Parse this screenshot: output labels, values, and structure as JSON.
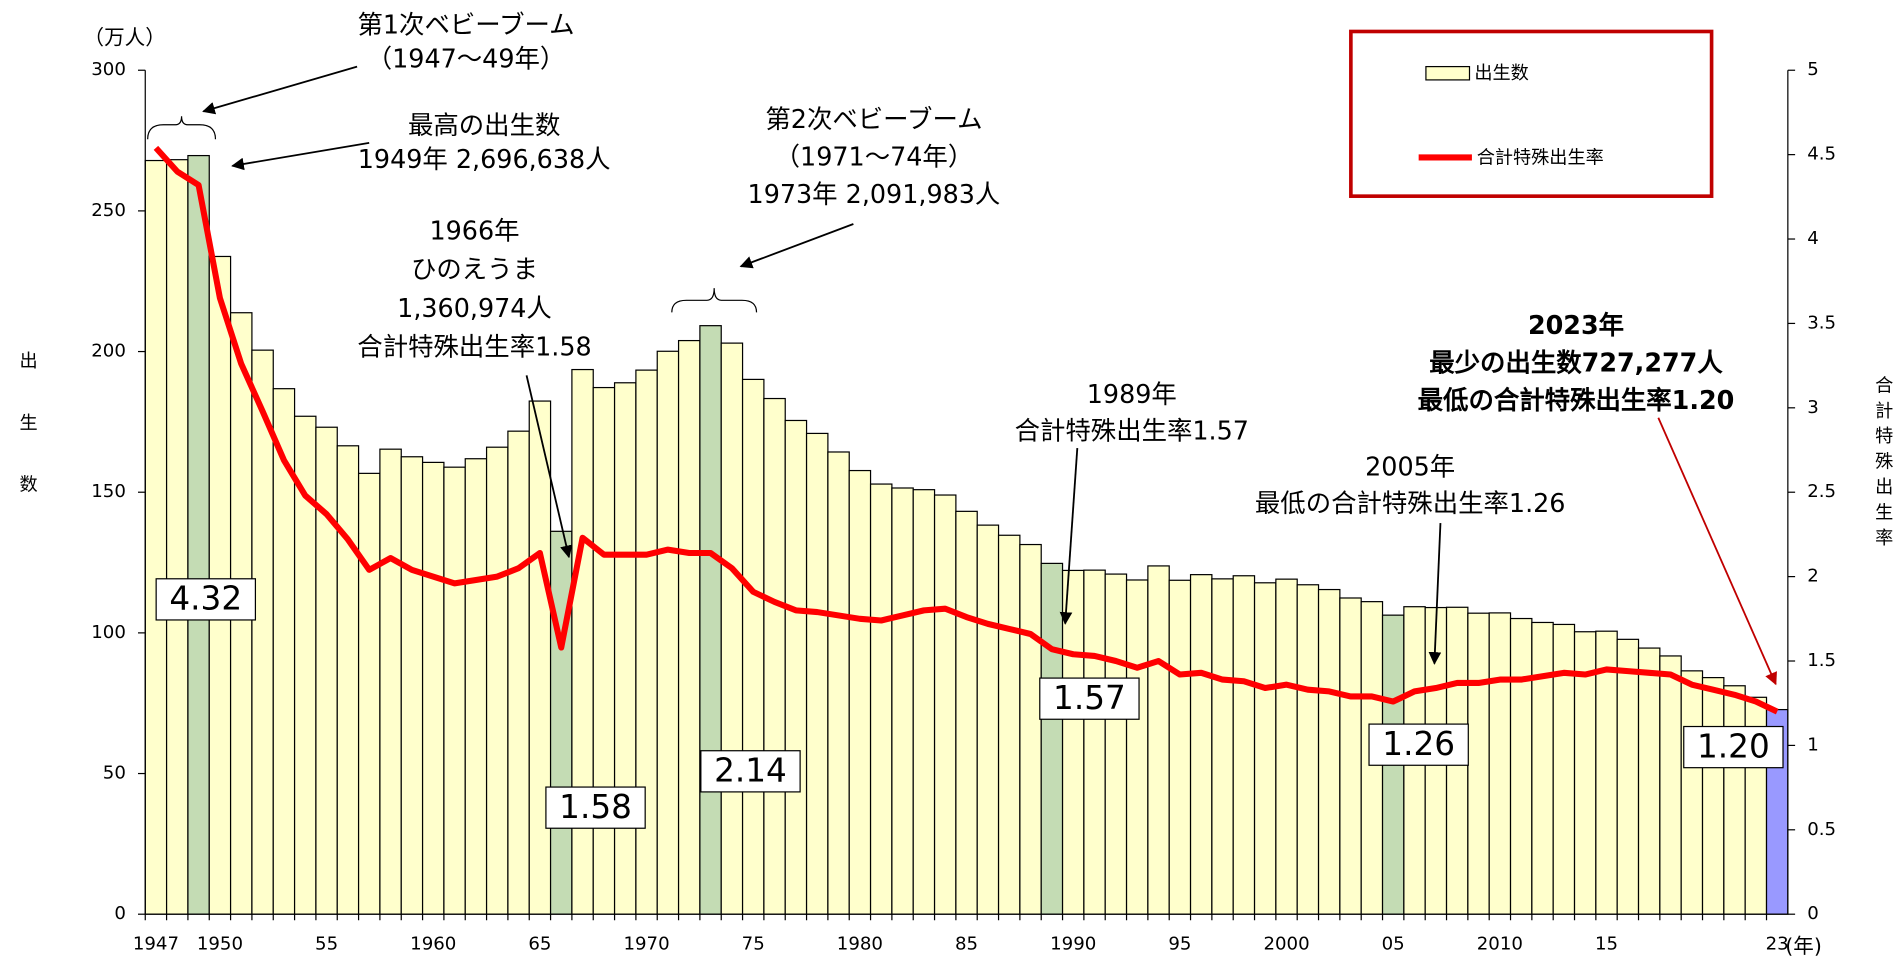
{
  "chart_data": {
    "type": "bar-line",
    "y_unit": "（万人）",
    "x_unit": "(年)",
    "y_label": "出生数",
    "y2_label": "合計特殊出生率",
    "categories": [
      "1947",
      null,
      null,
      "1950",
      null,
      null,
      null,
      null,
      "55",
      null,
      null,
      null,
      null,
      "1960",
      null,
      null,
      null,
      null,
      "65",
      null,
      null,
      null,
      null,
      "1970",
      null,
      null,
      null,
      null,
      "75",
      null,
      null,
      null,
      null,
      "1980",
      null,
      null,
      null,
      null,
      "85",
      null,
      null,
      null,
      null,
      "1990",
      null,
      null,
      null,
      null,
      "95",
      null,
      null,
      null,
      null,
      "2000",
      null,
      null,
      null,
      null,
      "05",
      null,
      null,
      null,
      null,
      "2010",
      null,
      null,
      null,
      null,
      "15",
      null,
      null,
      null,
      null,
      null,
      null,
      null,
      "23"
    ],
    "series": [
      {
        "name": "出生数",
        "type": "bar",
        "color": "#ffffcc",
        "values": [
          267.9,
          268.2,
          269.66,
          233.8,
          213.8,
          200.5,
          186.8,
          177.0,
          173.1,
          166.5,
          156.7,
          165.3,
          162.6,
          160.6,
          158.9,
          161.9,
          166.0,
          171.7,
          182.4,
          136.1,
          193.6,
          187.2,
          188.9,
          193.4,
          200.1,
          203.9,
          209.2,
          203.0,
          190.1,
          183.3,
          175.5,
          170.9,
          164.3,
          157.7,
          152.9,
          151.5,
          150.9,
          149.0,
          143.2,
          138.3,
          134.7,
          131.4,
          124.7,
          122.2,
          122.3,
          120.9,
          118.8,
          123.8,
          118.7,
          120.7,
          119.2,
          120.3,
          117.8,
          119.1,
          117.1,
          115.4,
          112.4,
          111.1,
          106.3,
          109.3,
          109.0,
          109.1,
          107.0,
          107.1,
          105.1,
          103.7,
          103.0,
          100.4,
          100.6,
          97.7,
          94.6,
          91.8,
          86.5,
          84.1,
          81.2,
          77.1,
          72.73
        ],
        "colors": [
          "#ffffcc",
          "#ffffcc",
          "#c4dcb4",
          "#ffffcc",
          "#ffffcc",
          "#ffffcc",
          "#ffffcc",
          "#ffffcc",
          "#ffffcc",
          "#ffffcc",
          "#ffffcc",
          "#ffffcc",
          "#ffffcc",
          "#ffffcc",
          "#ffffcc",
          "#ffffcc",
          "#ffffcc",
          "#ffffcc",
          "#ffffcc",
          "#c4dcb4",
          "#ffffcc",
          "#ffffcc",
          "#ffffcc",
          "#ffffcc",
          "#ffffcc",
          "#ffffcc",
          "#c4dcb4",
          "#ffffcc",
          "#ffffcc",
          "#ffffcc",
          "#ffffcc",
          "#ffffcc",
          "#ffffcc",
          "#ffffcc",
          "#ffffcc",
          "#ffffcc",
          "#ffffcc",
          "#ffffcc",
          "#ffffcc",
          "#ffffcc",
          "#ffffcc",
          "#ffffcc",
          "#c4dcb4",
          "#ffffcc",
          "#ffffcc",
          "#ffffcc",
          "#ffffcc",
          "#ffffcc",
          "#ffffcc",
          "#ffffcc",
          "#ffffcc",
          "#ffffcc",
          "#ffffcc",
          "#ffffcc",
          "#ffffcc",
          "#ffffcc",
          "#ffffcc",
          "#ffffcc",
          "#c4dcb4",
          "#ffffcc",
          "#ffffcc",
          "#ffffcc",
          "#ffffcc",
          "#ffffcc",
          "#ffffcc",
          "#ffffcc",
          "#ffffcc",
          "#ffffcc",
          "#ffffcc",
          "#ffffcc",
          "#ffffcc",
          "#ffffcc",
          "#ffffcc",
          "#ffffcc",
          "#ffffcc",
          "#ffffcc",
          "#9999ff"
        ]
      },
      {
        "name": "合計特殊出生率",
        "type": "line",
        "axis": "y2",
        "color": "#ff0000",
        "values": [
          4.54,
          4.4,
          4.32,
          3.65,
          3.26,
          2.98,
          2.69,
          2.48,
          2.37,
          2.22,
          2.04,
          2.11,
          2.04,
          2.0,
          1.96,
          1.98,
          2.0,
          2.05,
          2.14,
          1.58,
          2.23,
          2.13,
          2.13,
          2.13,
          2.16,
          2.14,
          2.14,
          2.05,
          1.91,
          1.85,
          1.8,
          1.79,
          1.77,
          1.75,
          1.74,
          1.77,
          1.8,
          1.81,
          1.76,
          1.72,
          1.69,
          1.66,
          1.57,
          1.54,
          1.53,
          1.5,
          1.46,
          1.5,
          1.42,
          1.43,
          1.39,
          1.38,
          1.34,
          1.36,
          1.33,
          1.32,
          1.29,
          1.29,
          1.26,
          1.32,
          1.34,
          1.37,
          1.37,
          1.39,
          1.39,
          1.41,
          1.43,
          1.42,
          1.45,
          1.44,
          1.43,
          1.42,
          1.36,
          1.33,
          1.3,
          1.26,
          1.2
        ],
        "value_labels": [
          null,
          null,
          "4.32",
          null,
          null,
          null,
          null,
          null,
          null,
          null,
          null,
          null,
          null,
          null,
          null,
          null,
          null,
          null,
          null,
          "1.58",
          null,
          null,
          null,
          null,
          null,
          null,
          "2.14",
          null,
          null,
          null,
          null,
          null,
          null,
          null,
          null,
          null,
          null,
          null,
          null,
          null,
          null,
          null,
          "1.57",
          null,
          null,
          null,
          null,
          null,
          null,
          null,
          null,
          null,
          null,
          null,
          null,
          null,
          null,
          null,
          "1.26",
          null,
          null,
          null,
          null,
          null,
          null,
          null,
          null,
          null,
          null,
          null,
          null,
          null,
          null,
          null,
          null,
          null,
          "1.20"
        ]
      }
    ],
    "ylim": [
      0,
      300
    ],
    "yticks": [
      0,
      50,
      100,
      150,
      200,
      250,
      300
    ],
    "y2lim": [
      0,
      5
    ],
    "y2ticks": [
      0,
      0.5,
      1,
      1.5,
      2,
      2.5,
      3,
      3.5,
      4,
      4.5,
      5
    ],
    "legend": "top-right",
    "annotations": [
      {
        "lines": [
          "第1次ベビーブーム",
          "（1947～49年）"
        ]
      },
      {
        "lines": [
          "最高の出生数",
          "1949年 2,696,638人"
        ]
      },
      {
        "lines": [
          "第2次ベビーブーム",
          "（1971～74年）",
          "1973年 2,091,983人"
        ]
      },
      {
        "lines": [
          "1966年",
          "ひのえうま",
          "1,360,974人",
          "合計特殊出生率1.58"
        ]
      },
      {
        "lines": [
          "1989年",
          "合計特殊出生率1.57"
        ]
      },
      {
        "lines": [
          "2005年",
          "最低の合計特殊出生率1.26"
        ]
      },
      {
        "lines": [
          "2023年",
          "最少の出生数727,277人",
          "最低の合計特殊出生率1.20"
        ],
        "color": "#c00000",
        "bold": true
      }
    ]
  }
}
